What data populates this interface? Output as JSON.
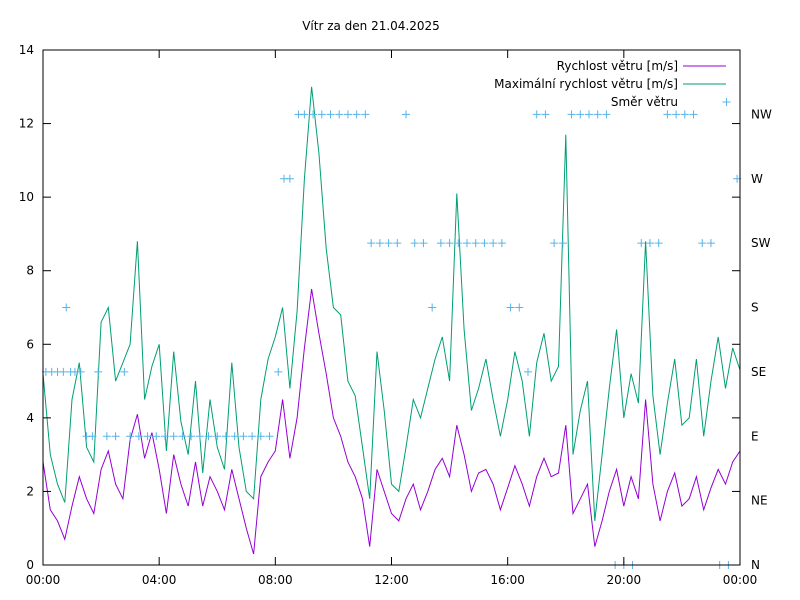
{
  "chart_data": {
    "type": "line",
    "title": "Vítr za den 21.04.2025",
    "xlabel": "",
    "ylabel": "",
    "x_unit": "hours",
    "xlim": [
      0,
      24
    ],
    "ylim": [
      0,
      14
    ],
    "x_ticks": [
      {
        "value": 0,
        "label": "00:00"
      },
      {
        "value": 4,
        "label": "04:00"
      },
      {
        "value": 8,
        "label": "08:00"
      },
      {
        "value": 12,
        "label": "12:00"
      },
      {
        "value": 16,
        "label": "16:00"
      },
      {
        "value": 20,
        "label": "20:00"
      },
      {
        "value": 24,
        "label": "00:00"
      }
    ],
    "y_ticks": [
      0,
      2,
      4,
      6,
      8,
      10,
      12,
      14
    ],
    "y2_ticks": [
      {
        "label": "N",
        "value": 0
      },
      {
        "label": "NE",
        "value": 1
      },
      {
        "label": "E",
        "value": 2
      },
      {
        "label": "SE",
        "value": 3
      },
      {
        "label": "S",
        "value": 4
      },
      {
        "label": "SW",
        "value": 5
      },
      {
        "label": "W",
        "value": 6
      },
      {
        "label": "NW",
        "value": 7
      }
    ],
    "y2lim": [
      0,
      8
    ],
    "legend_position": "top-right",
    "grid": false,
    "series": [
      {
        "name": "Rychlost větru [m/s]",
        "color": "#9400d3",
        "x": [
          0,
          0.25,
          0.5,
          0.75,
          1,
          1.25,
          1.5,
          1.75,
          2,
          2.25,
          2.5,
          2.75,
          3,
          3.25,
          3.5,
          3.75,
          4,
          4.25,
          4.5,
          4.75,
          5,
          5.25,
          5.5,
          5.75,
          6,
          6.25,
          6.5,
          6.75,
          7,
          7.25,
          7.5,
          7.75,
          8,
          8.25,
          8.5,
          8.75,
          9,
          9.25,
          9.5,
          9.75,
          10,
          10.25,
          10.5,
          10.75,
          11,
          11.25,
          11.5,
          11.75,
          12,
          12.25,
          12.5,
          12.75,
          13,
          13.25,
          13.5,
          13.75,
          14,
          14.25,
          14.5,
          14.75,
          15,
          15.25,
          15.5,
          15.75,
          16,
          16.25,
          16.5,
          16.75,
          17,
          17.25,
          17.5,
          17.75,
          18,
          18.25,
          18.5,
          18.75,
          19,
          19.25,
          19.5,
          19.75,
          20,
          20.25,
          20.5,
          20.75,
          21,
          21.25,
          21.5,
          21.75,
          22,
          22.25,
          22.5,
          22.75,
          23,
          23.25,
          23.5,
          23.75,
          24
        ],
        "values": [
          2.8,
          1.5,
          1.2,
          0.7,
          1.6,
          2.4,
          1.8,
          1.4,
          2.6,
          3.1,
          2.2,
          1.8,
          3.4,
          4.1,
          2.9,
          3.6,
          2.6,
          1.4,
          3.0,
          2.2,
          1.6,
          2.8,
          1.6,
          2.4,
          2.0,
          1.5,
          2.6,
          1.8,
          1.0,
          0.3,
          2.4,
          2.8,
          3.1,
          4.5,
          2.9,
          4.0,
          5.9,
          7.5,
          6.3,
          5.2,
          4.0,
          3.5,
          2.8,
          2.4,
          1.8,
          0.5,
          2.6,
          2.0,
          1.4,
          1.2,
          1.8,
          2.2,
          1.5,
          2.0,
          2.6,
          2.9,
          2.4,
          3.8,
          3.0,
          2.0,
          2.5,
          2.6,
          2.2,
          1.5,
          2.1,
          2.7,
          2.2,
          1.6,
          2.4,
          2.9,
          2.4,
          2.5,
          3.8,
          1.4,
          1.8,
          2.2,
          0.5,
          1.2,
          2.0,
          2.6,
          1.6,
          2.4,
          1.8,
          4.5,
          2.2,
          1.2,
          2.0,
          2.5,
          1.6,
          1.8,
          2.4,
          1.5,
          2.1,
          2.6,
          2.2,
          2.8,
          3.1
        ]
      },
      {
        "name": "Maximální rychlost větru [m/s]",
        "color": "#009e73",
        "x": [
          0,
          0.25,
          0.5,
          0.75,
          1,
          1.25,
          1.5,
          1.75,
          2,
          2.25,
          2.5,
          2.75,
          3,
          3.25,
          3.5,
          3.75,
          4,
          4.25,
          4.5,
          4.75,
          5,
          5.25,
          5.5,
          5.75,
          6,
          6.25,
          6.5,
          6.75,
          7,
          7.25,
          7.5,
          7.75,
          8,
          8.25,
          8.5,
          8.75,
          9,
          9.25,
          9.5,
          9.75,
          10,
          10.25,
          10.5,
          10.75,
          11,
          11.25,
          11.5,
          11.75,
          12,
          12.25,
          12.5,
          12.75,
          13,
          13.25,
          13.5,
          13.75,
          14,
          14.25,
          14.5,
          14.75,
          15,
          15.25,
          15.5,
          15.75,
          16,
          16.25,
          16.5,
          16.75,
          17,
          17.25,
          17.5,
          17.75,
          18,
          18.25,
          18.5,
          18.75,
          19,
          19.25,
          19.5,
          19.75,
          20,
          20.25,
          20.5,
          20.75,
          21,
          21.25,
          21.5,
          21.75,
          22,
          22.25,
          22.5,
          22.75,
          23,
          23.25,
          23.5,
          23.75,
          24
        ],
        "values": [
          5.2,
          3.0,
          2.2,
          1.7,
          4.5,
          5.5,
          3.2,
          2.8,
          6.6,
          7.0,
          5.0,
          5.5,
          6.0,
          8.8,
          4.5,
          5.4,
          6.0,
          3.1,
          5.8,
          3.9,
          3.0,
          5.0,
          2.5,
          4.5,
          3.2,
          2.6,
          5.5,
          3.2,
          2.0,
          1.8,
          4.5,
          5.6,
          6.2,
          7.0,
          4.8,
          6.9,
          10.5,
          13.0,
          11.2,
          8.6,
          7.0,
          6.8,
          5.0,
          4.6,
          3.2,
          1.8,
          5.8,
          4.2,
          2.2,
          2.0,
          3.2,
          4.5,
          4.0,
          4.8,
          5.6,
          6.2,
          5.0,
          10.1,
          6.4,
          4.2,
          4.8,
          5.6,
          4.5,
          3.5,
          4.5,
          5.8,
          5.0,
          3.5,
          5.5,
          6.3,
          5.0,
          5.4,
          11.7,
          3.0,
          4.2,
          5.0,
          1.2,
          3.0,
          4.8,
          6.4,
          4.0,
          5.2,
          4.4,
          8.8,
          4.6,
          3.0,
          4.4,
          5.6,
          3.8,
          4.0,
          5.6,
          3.5,
          5.0,
          6.2,
          4.8,
          5.9,
          5.3
        ]
      },
      {
        "name": "Směr větru",
        "color": "#56b4e9",
        "kind": "points",
        "axis": "y2",
        "x": [
          0.1,
          0.3,
          0.5,
          0.7,
          0.8,
          0.95,
          1.1,
          1.3,
          1.5,
          1.7,
          1.9,
          2.2,
          2.5,
          2.8,
          3.0,
          3.3,
          3.6,
          3.9,
          4.2,
          4.5,
          4.8,
          5.1,
          5.4,
          5.7,
          6.0,
          6.3,
          6.6,
          6.9,
          7.2,
          7.5,
          7.8,
          8.1,
          8.3,
          8.5,
          8.8,
          9.0,
          9.3,
          9.6,
          9.9,
          10.2,
          10.5,
          10.8,
          11.1,
          11.3,
          11.6,
          11.9,
          12.2,
          12.5,
          12.8,
          13.1,
          13.4,
          13.7,
          14.0,
          14.3,
          14.6,
          14.9,
          15.2,
          15.5,
          15.8,
          16.1,
          16.4,
          16.7,
          17.0,
          17.3,
          17.6,
          17.9,
          18.2,
          18.5,
          18.8,
          19.1,
          19.4,
          19.7,
          20.0,
          20.3,
          20.6,
          20.9,
          21.2,
          21.5,
          21.8,
          22.1,
          22.4,
          22.7,
          23.0,
          23.3,
          23.6,
          23.9
        ],
        "values": [
          3,
          3,
          3,
          3,
          4,
          3,
          3,
          3,
          2,
          2,
          3,
          2,
          2,
          3,
          2,
          2,
          2,
          2,
          2,
          2,
          2,
          2,
          2,
          2,
          2,
          2,
          2,
          2,
          2,
          2,
          2,
          3,
          6,
          6,
          7,
          7,
          7,
          7,
          7,
          7,
          7,
          7,
          7,
          5,
          5,
          5,
          5,
          7,
          5,
          5,
          4,
          5,
          5,
          5,
          5,
          5,
          5,
          5,
          5,
          4,
          4,
          3,
          7,
          7,
          5,
          5,
          7,
          7,
          7,
          7,
          7,
          0,
          0,
          0,
          5,
          5,
          5,
          7,
          7,
          7,
          7,
          5,
          5,
          0,
          0,
          6
        ]
      }
    ]
  }
}
